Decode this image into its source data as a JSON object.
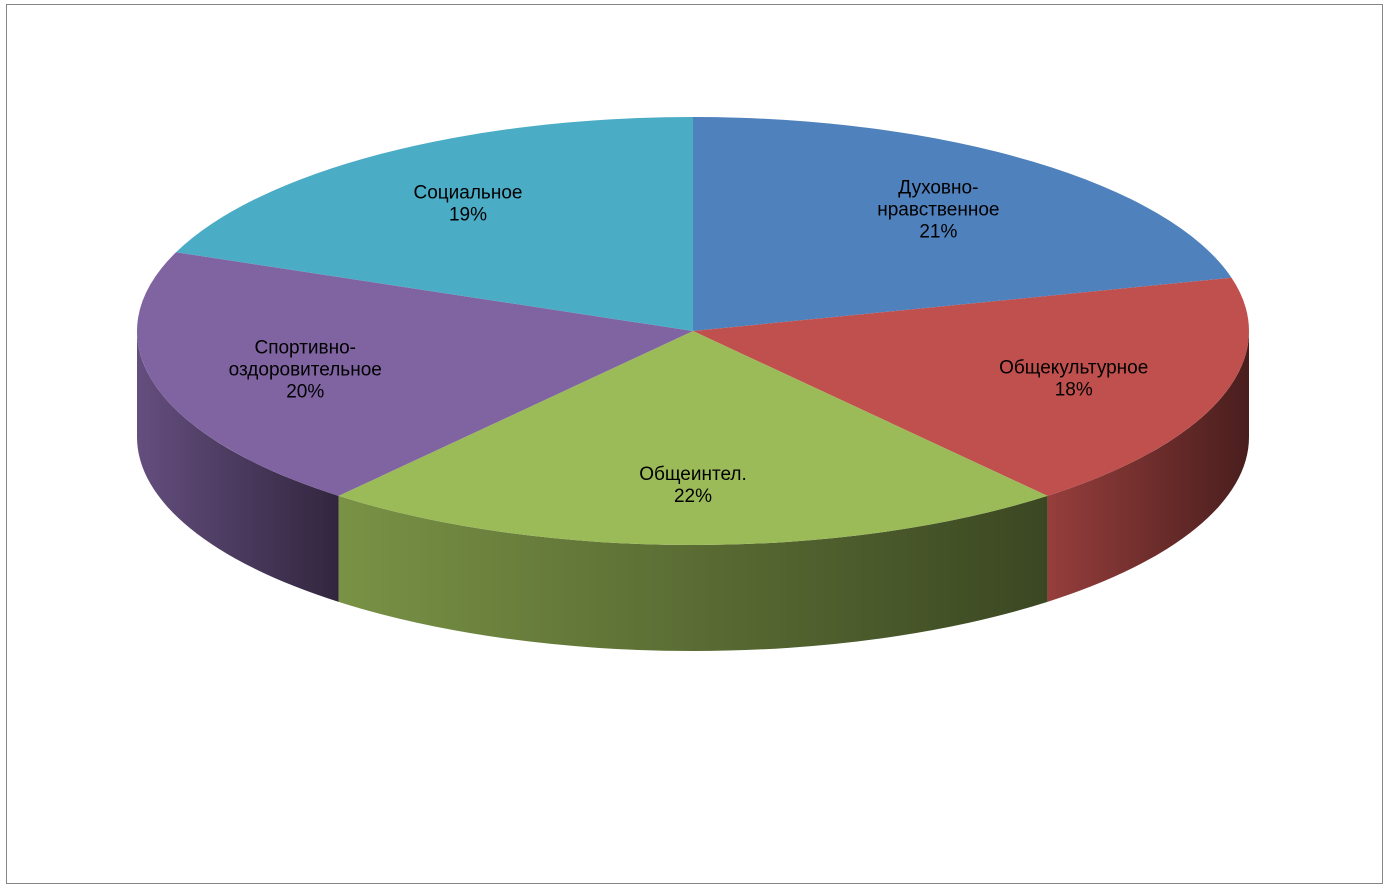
{
  "chart_data": {
    "type": "pie",
    "style": "3d",
    "legend": "none",
    "slices": [
      {
        "label": "Духовно-нравственное",
        "label_lines": [
          "Духовно-",
          "нравственное"
        ],
        "percent_text": "21%",
        "value": 21,
        "color": "#4f81bd"
      },
      {
        "label": "Общекультурное",
        "label_lines": [
          "Общекультурное"
        ],
        "percent_text": "18%",
        "value": 18,
        "color": "#c0504d"
      },
      {
        "label": "Общеинтел.",
        "label_lines": [
          "Общеинтел."
        ],
        "percent_text": "22%",
        "value": 22,
        "color": "#9bbb59"
      },
      {
        "label": "Спортивно-оздоровительное",
        "label_lines": [
          "Спортивно-",
          "оздоровительное"
        ],
        "percent_text": "20%",
        "value": 20,
        "color": "#8064a2"
      },
      {
        "label": "Социальное",
        "label_lines": [
          "Социальное"
        ],
        "percent_text": "19%",
        "value": 19,
        "color": "#4bacc6"
      }
    ]
  }
}
